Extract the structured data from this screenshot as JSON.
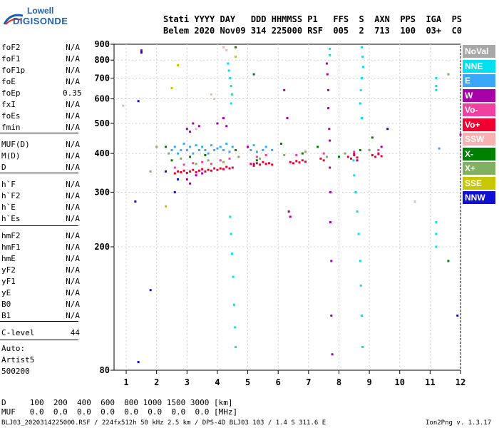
{
  "logo": {
    "line1": "Lowell",
    "line2": "DIGISONDE"
  },
  "header": {
    "row1": "Stati YYYY DAY   DDD HHMMSS P1   FFS  S  AXN  PPS  IGA  PS",
    "row2": "Belem 2020 Nov09 314 225000 RSF  005  2  713  100  03+  C0"
  },
  "params": [
    {
      "name": "foF2",
      "value": "N/A"
    },
    {
      "name": "foF1",
      "value": "N/A"
    },
    {
      "name": "foF1p",
      "value": "N/A"
    },
    {
      "name": "foE",
      "value": "N/A"
    },
    {
      "name": "foEp",
      "value": "0.35"
    },
    {
      "name": "fxI",
      "value": "N/A"
    },
    {
      "name": "foEs",
      "value": "N/A"
    },
    {
      "name": "fmin",
      "value": "N/A"
    },
    {
      "name": "MUF(D)",
      "value": "N/A"
    },
    {
      "name": "M(D)",
      "value": "N/A"
    },
    {
      "name": "D",
      "value": "N/A"
    },
    {
      "name": "h`F",
      "value": "N/A"
    },
    {
      "name": "h`F2",
      "value": "N/A"
    },
    {
      "name": "h`E",
      "value": "N/A"
    },
    {
      "name": "h`Es",
      "value": "N/A"
    },
    {
      "name": "hmF2",
      "value": "N/A"
    },
    {
      "name": "hmF1",
      "value": "N/A"
    },
    {
      "name": "hmE",
      "value": "N/A"
    },
    {
      "name": "yF2",
      "value": "N/A"
    },
    {
      "name": "yF1",
      "value": "N/A"
    },
    {
      "name": "yE",
      "value": "N/A"
    },
    {
      "name": "B0",
      "value": "N/A"
    },
    {
      "name": "B1",
      "value": "N/A"
    },
    {
      "name": "C-level",
      "value": "44"
    }
  ],
  "autoscaling": {
    "line1": "Auto:",
    "line2": "Artist5",
    "line3": "500200"
  },
  "legend": [
    {
      "label": "NoVal",
      "color": "#a8a8a8"
    },
    {
      "label": "NNE",
      "color": "#00e0f0"
    },
    {
      "label": "E",
      "color": "#3aa8f8"
    },
    {
      "label": "W",
      "color": "#a800a8"
    },
    {
      "label": "Vo-",
      "color": "#f040a0"
    },
    {
      "label": "Vo+",
      "color": "#f00030"
    },
    {
      "label": "SSW",
      "color": "#f8b0b0"
    },
    {
      "label": "X-",
      "color": "#008000"
    },
    {
      "label": "X+",
      "color": "#80b060"
    },
    {
      "label": "SSE",
      "color": "#c8c800"
    },
    {
      "label": "NNW",
      "color": "#1010d0"
    }
  ],
  "footer": {
    "d_row": "D     100  200  400  600  800 1000 1500 3000 [km]",
    "muf_row": "MUF   0.0  0.0  0.0  0.0  0.0  0.0  0.0  0.0 [MHz]",
    "file_line": "BLJ03_2020314225000.RSF / 224fx512h 50 kHz 2.5 km / DPS-4D BLJ03 103 / 1.4 S 311.6 E",
    "version": "Ion2Png v. 1.3.17"
  },
  "chart_data": {
    "type": "scatter",
    "title": "",
    "xlabel": "",
    "ylabel": "",
    "xlim": [
      0.6,
      12.0
    ],
    "ylim": [
      80,
      900
    ],
    "y_scale": "log",
    "xticks": [
      1,
      2,
      3,
      4,
      5,
      6,
      7,
      8,
      9,
      10,
      11,
      12
    ],
    "yticks": [
      80,
      200,
      300,
      400,
      500,
      600,
      700,
      800,
      900
    ],
    "series": [
      {
        "name": "NNE",
        "points": [
          [
            4.35,
            780
          ],
          [
            4.38,
            740
          ],
          [
            4.42,
            700
          ],
          [
            4.45,
            660
          ],
          [
            4.48,
            620
          ],
          [
            4.45,
            580
          ],
          [
            4.42,
            250
          ],
          [
            4.45,
            220
          ],
          [
            4.48,
            190
          ],
          [
            4.52,
            160
          ],
          [
            4.55,
            130
          ],
          [
            4.58,
            110
          ],
          [
            4.6,
            95
          ],
          [
            7.7,
            870
          ],
          [
            7.7,
            830
          ],
          [
            8.75,
            880
          ],
          [
            8.78,
            820
          ],
          [
            8.8,
            760
          ],
          [
            8.75,
            700
          ],
          [
            8.72,
            640
          ],
          [
            8.7,
            580
          ],
          [
            8.75,
            520
          ],
          [
            8.48,
            380
          ],
          [
            8.5,
            340
          ],
          [
            8.55,
            300
          ],
          [
            8.6,
            260
          ],
          [
            8.65,
            220
          ],
          [
            8.7,
            180
          ],
          [
            8.72,
            150
          ],
          [
            8.75,
            120
          ],
          [
            8.78,
            95
          ],
          [
            11.2,
            700
          ],
          [
            11.2,
            660
          ],
          [
            11.2,
            640
          ],
          [
            11.2,
            240
          ],
          [
            11.2,
            220
          ],
          [
            11.2,
            200
          ]
        ]
      },
      {
        "name": "E",
        "points": [
          [
            2.5,
            410
          ],
          [
            2.6,
            420
          ],
          [
            2.7,
            400
          ],
          [
            2.8,
            410
          ],
          [
            2.9,
            430
          ],
          [
            3.0,
            410
          ],
          [
            3.1,
            420
          ],
          [
            3.2,
            400
          ],
          [
            3.3,
            425
          ],
          [
            3.4,
            410
          ],
          [
            3.5,
            420
          ],
          [
            3.6,
            410
          ],
          [
            3.7,
            400
          ],
          [
            3.8,
            425
          ],
          [
            3.9,
            410
          ],
          [
            4.0,
            415
          ],
          [
            4.1,
            420
          ],
          [
            4.2,
            410
          ],
          [
            4.3,
            430
          ],
          [
            4.4,
            405
          ],
          [
            4.5,
            420
          ],
          [
            5.0,
            420
          ],
          [
            5.1,
            410
          ],
          [
            5.2,
            425
          ],
          [
            5.3,
            405
          ],
          [
            5.5,
            410
          ],
          [
            5.6,
            420
          ],
          [
            5.8,
            410
          ],
          [
            11.3,
            415
          ]
        ]
      },
      {
        "name": "W",
        "points": [
          [
            1.5,
            860
          ],
          [
            1.5,
            845
          ],
          [
            3.0,
            480
          ],
          [
            3.1,
            470
          ],
          [
            3.2,
            500
          ],
          [
            3.4,
            490
          ],
          [
            4.0,
            500
          ],
          [
            4.2,
            520
          ],
          [
            4.3,
            490
          ],
          [
            6.2,
            640
          ],
          [
            6.3,
            520
          ],
          [
            6.35,
            260
          ],
          [
            6.4,
            250
          ],
          [
            7.6,
            780
          ],
          [
            7.62,
            720
          ],
          [
            7.65,
            640
          ],
          [
            7.65,
            560
          ],
          [
            7.68,
            480
          ],
          [
            7.7,
            440
          ],
          [
            7.7,
            360
          ],
          [
            7.72,
            300
          ],
          [
            7.72,
            240
          ],
          [
            7.75,
            180
          ],
          [
            7.75,
            120
          ],
          [
            7.78,
            90
          ],
          [
            3.0,
            330
          ],
          [
            3.1,
            320
          ],
          [
            3.3,
            340
          ],
          [
            3.5,
            345
          ],
          [
            5.0,
            420
          ],
          [
            5.2,
            370
          ],
          [
            8.5,
            400
          ],
          [
            8.6,
            380
          ],
          [
            9.3,
            400
          ],
          [
            9.4,
            420
          ],
          [
            12.0,
            460
          ]
        ]
      },
      {
        "name": "Vo+",
        "points": [
          [
            2.6,
            345
          ],
          [
            2.7,
            350
          ],
          [
            2.8,
            348
          ],
          [
            2.9,
            352
          ],
          [
            3.0,
            346
          ],
          [
            3.1,
            350
          ],
          [
            3.2,
            354
          ],
          [
            3.3,
            348
          ],
          [
            3.4,
            352
          ],
          [
            3.5,
            356
          ],
          [
            3.6,
            350
          ],
          [
            3.7,
            354
          ],
          [
            3.8,
            352
          ],
          [
            3.9,
            358
          ],
          [
            4.0,
            354
          ],
          [
            4.1,
            358
          ],
          [
            4.2,
            356
          ],
          [
            4.3,
            362
          ],
          [
            4.4,
            358
          ],
          [
            4.5,
            360
          ],
          [
            5.1,
            370
          ],
          [
            5.2,
            365
          ],
          [
            5.3,
            372
          ],
          [
            5.4,
            368
          ],
          [
            5.5,
            375
          ],
          [
            5.6,
            370
          ],
          [
            5.7,
            372
          ],
          [
            5.8,
            368
          ],
          [
            6.4,
            375
          ],
          [
            6.5,
            372
          ],
          [
            6.6,
            378
          ],
          [
            6.7,
            374
          ],
          [
            6.8,
            380
          ],
          [
            6.9,
            376
          ],
          [
            7.4,
            385
          ],
          [
            7.5,
            380
          ],
          [
            8.3,
            390
          ],
          [
            8.4,
            385
          ],
          [
            8.5,
            395
          ],
          [
            8.6,
            388
          ],
          [
            9.1,
            395
          ],
          [
            9.2,
            390
          ],
          [
            9.3,
            398
          ],
          [
            9.4,
            392
          ]
        ]
      },
      {
        "name": "Vo-",
        "points": [
          [
            2.6,
            360
          ],
          [
            2.9,
            368
          ],
          [
            3.2,
            372
          ],
          [
            3.5,
            375
          ],
          [
            3.8,
            370
          ],
          [
            4.1,
            380
          ],
          [
            4.4,
            385
          ],
          [
            5.3,
            390
          ],
          [
            5.6,
            395
          ],
          [
            6.6,
            395
          ],
          [
            7.5,
            400
          ],
          [
            8.5,
            405
          ],
          [
            9.3,
            410
          ]
        ]
      },
      {
        "name": "X-",
        "points": [
          [
            2.3,
            420
          ],
          [
            2.5,
            380
          ],
          [
            3.1,
            390
          ],
          [
            3.6,
            395
          ],
          [
            4.6,
            410
          ],
          [
            5.3,
            380
          ],
          [
            6.1,
            430
          ],
          [
            6.8,
            400
          ],
          [
            7.3,
            420
          ],
          [
            8.0,
            390
          ],
          [
            8.7,
            410
          ],
          [
            9.1,
            450
          ],
          [
            5.2,
            720
          ],
          [
            4.6,
            880
          ],
          [
            11.6,
            180
          ]
        ]
      },
      {
        "name": "X+",
        "points": [
          [
            2.4,
            400
          ],
          [
            2.8,
            385
          ],
          [
            3.3,
            370
          ],
          [
            3.7,
            380
          ],
          [
            4.2,
            375
          ],
          [
            4.7,
            390
          ],
          [
            5.4,
            385
          ],
          [
            6.2,
            395
          ],
          [
            6.9,
            405
          ],
          [
            7.6,
            390
          ],
          [
            8.2,
            400
          ],
          [
            9.0,
            410
          ],
          [
            11.6,
            720
          ],
          [
            2.0,
            420
          ],
          [
            1.8,
            350
          ]
        ]
      },
      {
        "name": "SSW",
        "points": [
          [
            3.8,
            620
          ],
          [
            3.9,
            600
          ],
          [
            4.2,
            880
          ],
          [
            4.3,
            860
          ],
          [
            10.5,
            280
          ],
          [
            0.9,
            570
          ],
          [
            3.3,
            480
          ]
        ]
      },
      {
        "name": "SSE",
        "points": [
          [
            2.3,
            270
          ],
          [
            2.7,
            770
          ],
          [
            2.5,
            650
          ],
          [
            4.6,
            820
          ]
        ]
      },
      {
        "name": "NNW",
        "points": [
          [
            1.5,
            850
          ],
          [
            1.3,
            280
          ],
          [
            1.4,
            590
          ],
          [
            1.4,
            85
          ],
          [
            1.8,
            145
          ],
          [
            2.3,
            350
          ],
          [
            9.6,
            480
          ],
          [
            11.9,
            120
          ],
          [
            2.7,
            330
          ],
          [
            2.6,
            300
          ]
        ]
      }
    ]
  }
}
